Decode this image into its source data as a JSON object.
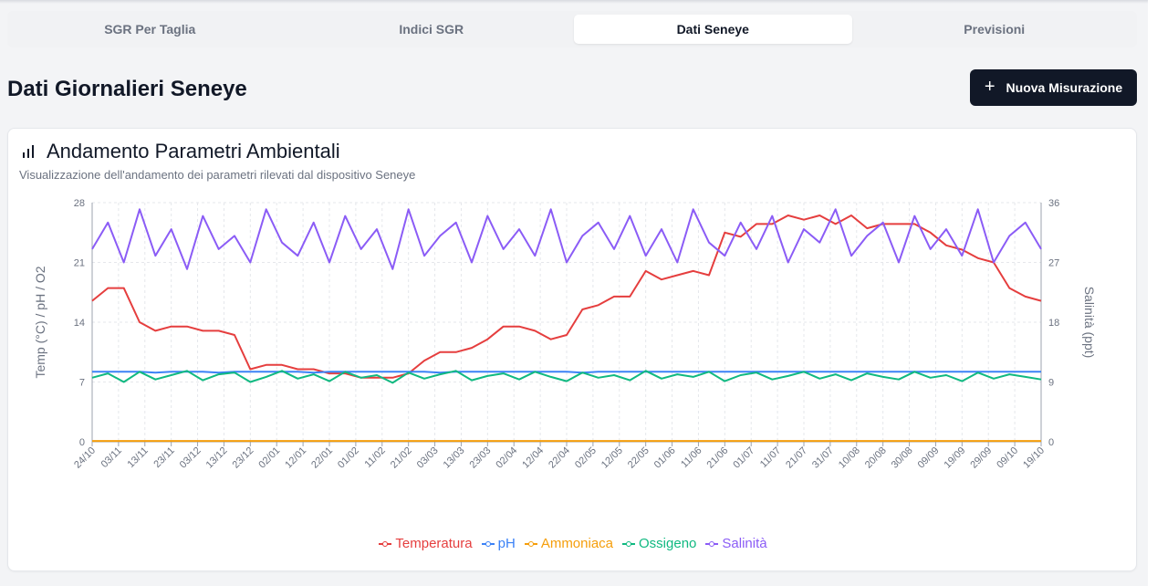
{
  "tabs": [
    {
      "label": "SGR Per Taglia",
      "active": false
    },
    {
      "label": "Indici SGR",
      "active": false
    },
    {
      "label": "Dati Seneye",
      "active": true
    },
    {
      "label": "Previsioni",
      "active": false
    }
  ],
  "page": {
    "title": "Dati Giornalieri Seneye",
    "new_button_label": "Nuova Misurazione"
  },
  "card": {
    "title": "Andamento Parametri Ambientali",
    "subtitle": "Visualizzazione dell'andamento dei parametri rilevati dal dispositivo Seneye",
    "icon": "bar-chart-icon"
  },
  "chart_data": {
    "type": "line",
    "ylabel_left": "Temp (°C) / pH / O2",
    "ylabel_right": "Salinità (ppt)",
    "yticks_left": [
      0,
      7,
      14,
      21,
      28
    ],
    "yticks_right": [
      0,
      9,
      18,
      27,
      36
    ],
    "ylim_left": [
      0,
      28
    ],
    "ylim_right": [
      0,
      36
    ],
    "grid": true,
    "legend_position": "bottom",
    "x_tick_labels": [
      "24/10",
      "03/11",
      "13/11",
      "23/11",
      "03/12",
      "13/12",
      "23/12",
      "02/01",
      "12/01",
      "22/01",
      "01/02",
      "11/02",
      "21/02",
      "03/03",
      "13/03",
      "23/03",
      "02/04",
      "12/04",
      "22/04",
      "02/05",
      "12/05",
      "22/05",
      "01/06",
      "11/06",
      "21/06",
      "01/07",
      "11/07",
      "21/07",
      "31/07",
      "10/08",
      "20/08",
      "30/08",
      "09/09",
      "19/09",
      "29/09",
      "09/10",
      "19/10"
    ],
    "x_tick_labels_display": [
      "24/10",
      "03/11",
      "13/11",
      "23/11",
      "03/12",
      "13/12",
      "23/12",
      "02/01",
      "12/01",
      "22/01",
      "01/02",
      "11/02",
      "21/02",
      "03/03",
      "13/03",
      "23/03",
      "02/04",
      "12/04",
      "22/04",
      "02/05",
      "12/05",
      "22/05",
      "01/06",
      "11/06",
      "21/06",
      "01/07",
      "11/07",
      "21/07",
      "31/07",
      "10/08",
      "20/08",
      "30/08",
      "09/09",
      "19/09",
      "29/09",
      "09/10",
      "19/10"
    ],
    "series": [
      {
        "name": "Temperatura",
        "color": "#e53e3e",
        "axis": "left",
        "values": [
          16.5,
          18,
          18,
          14,
          13,
          13.5,
          13.5,
          13,
          13,
          12.5,
          8.5,
          9,
          9,
          8.5,
          8.5,
          8,
          8,
          7.5,
          7.5,
          7.5,
          8,
          9.5,
          10.5,
          10.5,
          11,
          12,
          13.5,
          13.5,
          13,
          12,
          12.5,
          15.5,
          16,
          17,
          17,
          20,
          19,
          19.5,
          20,
          19.5,
          24.5,
          24,
          25.5,
          25.5,
          26.5,
          26,
          26.5,
          25.5,
          26.5,
          25,
          25.5,
          25.5,
          25.5,
          24.5,
          23,
          22.5,
          21.5,
          21,
          18,
          17,
          16.5
        ]
      },
      {
        "name": "pH",
        "color": "#3b82f6",
        "axis": "left",
        "values": [
          8.2,
          8.2,
          8.2,
          8.2,
          8.1,
          8.2,
          8.2,
          8.2,
          8.1,
          8.2,
          8.2,
          8.2,
          8.2,
          8.2,
          8.1,
          8.2,
          8.2,
          8.2,
          8.2,
          8.2,
          8.2,
          8.2,
          8.1,
          8.2,
          8.2,
          8.2,
          8.2,
          8.2,
          8.2,
          8.2,
          8.2,
          8.1,
          8.2,
          8.2,
          8.2,
          8.2,
          8.2,
          8.2,
          8.2,
          8.2,
          8.2,
          8.2,
          8.2,
          8.2,
          8.2,
          8.2,
          8.2,
          8.2,
          8.2,
          8.2,
          8.2,
          8.2,
          8.2,
          8.2,
          8.2,
          8.2,
          8.2,
          8.2,
          8.2,
          8.2,
          8.2
        ]
      },
      {
        "name": "Ammoniaca",
        "color": "#f59e0b",
        "axis": "left",
        "values": [
          0.1,
          0.1,
          0.1,
          0.1,
          0.1,
          0.1,
          0.1,
          0.1,
          0.1,
          0.1,
          0.1,
          0.1,
          0.1,
          0.1,
          0.1,
          0.1,
          0.1,
          0.1,
          0.1,
          0.1,
          0.1,
          0.1,
          0.1,
          0.1,
          0.1,
          0.1,
          0.1,
          0.1,
          0.1,
          0.1,
          0.1,
          0.1,
          0.1,
          0.1,
          0.1,
          0.1,
          0.1,
          0.1,
          0.1,
          0.1,
          0.1,
          0.1,
          0.1,
          0.1,
          0.1,
          0.1,
          0.1,
          0.1,
          0.1,
          0.1,
          0.1,
          0.1,
          0.1,
          0.1,
          0.1,
          0.1,
          0.1,
          0.1,
          0.1,
          0.1,
          0.1
        ]
      },
      {
        "name": "Ossigeno",
        "color": "#10b981",
        "axis": "left",
        "values": [
          7.5,
          8,
          7,
          8.2,
          7.3,
          7.8,
          8.3,
          7.2,
          7.9,
          8.1,
          7,
          7.6,
          8.3,
          7.4,
          7.9,
          7.1,
          8.2,
          7.5,
          7.8,
          6.9,
          8.1,
          7.4,
          7.9,
          8.3,
          7.2,
          7.7,
          8,
          7.3,
          8.2,
          7.6,
          7.1,
          8.1,
          7.5,
          7.8,
          7.2,
          8.3,
          7.4,
          7.9,
          7.6,
          8.2,
          7.1,
          7.8,
          8.1,
          7.3,
          7.7,
          8.2,
          7.4,
          7.9,
          7.2,
          8,
          7.6,
          7.3,
          8.2,
          7.5,
          7.8,
          7.1,
          8.1,
          7.4,
          7.9,
          7.6,
          7.3
        ]
      },
      {
        "name": "Salinità",
        "color": "#8b5cf6",
        "axis": "right",
        "values": [
          29,
          33,
          27,
          35,
          28,
          32,
          26,
          34,
          29,
          31,
          27,
          35,
          30,
          28,
          33,
          27,
          34,
          29,
          32,
          26,
          35,
          28,
          31,
          33,
          27,
          34,
          29,
          32,
          28,
          35,
          27,
          31,
          33,
          29,
          34,
          28,
          32,
          27,
          35,
          30,
          28,
          33,
          29,
          34,
          27,
          32,
          30,
          35,
          28,
          31,
          33,
          27,
          34,
          29,
          32,
          28,
          35,
          27,
          31,
          33,
          29
        ]
      }
    ]
  }
}
